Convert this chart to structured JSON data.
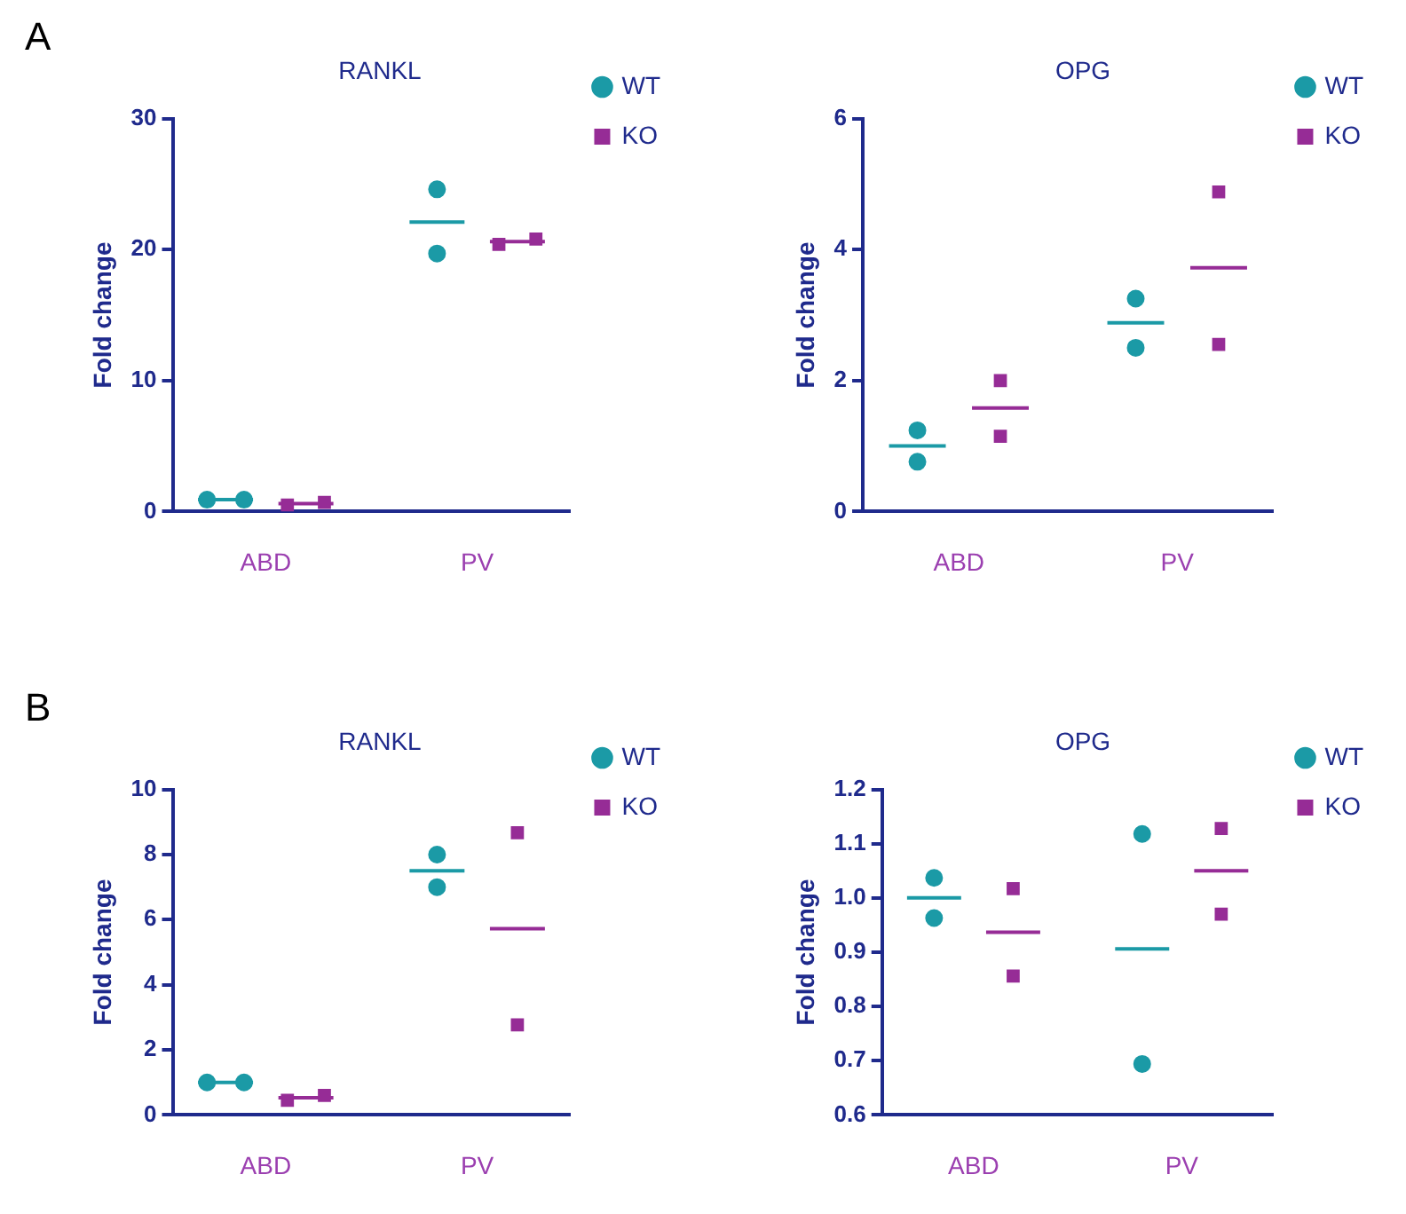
{
  "chart_data": [
    {
      "type": "scatter",
      "title": "RANKL",
      "ylabel": "Fold change",
      "annotations": [
        "A"
      ],
      "categories": [
        "ABD",
        "PV"
      ],
      "ylim": [
        0,
        30
      ],
      "yticks": [
        0,
        10,
        20,
        30
      ],
      "legend": "top right",
      "series": [
        {
          "name": "WT",
          "color": "#1b9aa6",
          "marker": "circle",
          "x": [
            "ABD",
            "ABD",
            "PV",
            "PV"
          ],
          "values": [
            0.9,
            0.9,
            24.6,
            19.7
          ]
        },
        {
          "name": "KO",
          "color": "#962c96",
          "marker": "square",
          "x": [
            "ABD",
            "ABD",
            "PV",
            "PV"
          ],
          "values": [
            0.5,
            0.7,
            20.4,
            20.8
          ]
        },
        {
          "type": "box",
          "color": "#1b9aa6",
          "boxes": [
            {
              "low": 0.9,
              "q1": 0.9,
              "median": 0.9,
              "q3": 0.9,
              "high": 0.9
            },
            {
              "low": 22.1,
              "q1": 22.1,
              "median": 22.1,
              "q3": 22.1,
              "high": 22.1
            }
          ]
        },
        {
          "type": "box",
          "color": "#962c96",
          "boxes": [
            {
              "low": 0.6,
              "q1": 0.6,
              "median": 0.6,
              "q3": 0.6,
              "high": 0.6
            },
            {
              "low": 20.6,
              "q1": 20.6,
              "median": 20.6,
              "q3": 20.6,
              "high": 20.6
            }
          ]
        }
      ]
    },
    {
      "type": "scatter",
      "title": "OPG",
      "ylabel": "Fold change",
      "categories": [
        "ABD",
        "PV"
      ],
      "ylim": [
        0,
        6
      ],
      "yticks": [
        0,
        2,
        4,
        6
      ],
      "legend": "top right",
      "series": [
        {
          "name": "WT",
          "color": "#1b9aa6",
          "marker": "circle",
          "x": [
            "ABD",
            "ABD",
            "PV",
            "PV"
          ],
          "values": [
            1.24,
            0.76,
            3.25,
            2.5
          ]
        },
        {
          "name": "KO",
          "color": "#962c96",
          "marker": "square",
          "x": [
            "ABD",
            "ABD",
            "PV",
            "PV"
          ],
          "values": [
            2.0,
            1.15,
            4.88,
            2.55
          ]
        },
        {
          "type": "box",
          "color": "#1b9aa6",
          "boxes": [
            {
              "low": 1.0,
              "q1": 1.0,
              "median": 1.0,
              "q3": 1.0,
              "high": 1.0
            },
            {
              "low": 2.88,
              "q1": 2.88,
              "median": 2.88,
              "q3": 2.88,
              "high": 2.88
            }
          ]
        },
        {
          "type": "box",
          "color": "#962c96",
          "boxes": [
            {
              "low": 1.58,
              "q1": 1.58,
              "median": 1.58,
              "q3": 1.58,
              "high": 1.58
            },
            {
              "low": 3.72,
              "q1": 3.72,
              "median": 3.72,
              "q3": 3.72,
              "high": 3.72
            }
          ]
        }
      ]
    },
    {
      "type": "scatter",
      "title": "RANKL",
      "ylabel": "Fold change",
      "annotations": [
        "B"
      ],
      "categories": [
        "ABD",
        "PV"
      ],
      "ylim": [
        0,
        10
      ],
      "yticks": [
        0,
        2,
        4,
        6,
        8,
        10
      ],
      "legend": "top right",
      "series": [
        {
          "name": "WT",
          "color": "#1b9aa6",
          "marker": "circle",
          "x": [
            "ABD",
            "ABD",
            "PV",
            "PV"
          ],
          "values": [
            1.0,
            1.0,
            8.0,
            7.0
          ]
        },
        {
          "name": "KO",
          "color": "#962c96",
          "marker": "square",
          "x": [
            "ABD",
            "ABD",
            "PV",
            "PV"
          ],
          "values": [
            0.45,
            0.6,
            8.67,
            2.77
          ]
        },
        {
          "type": "box",
          "color": "#1b9aa6",
          "boxes": [
            {
              "low": 1.0,
              "q1": 1.0,
              "median": 1.0,
              "q3": 1.0,
              "high": 1.0
            },
            {
              "low": 7.5,
              "q1": 7.5,
              "median": 7.5,
              "q3": 7.5,
              "high": 7.5
            }
          ]
        },
        {
          "type": "box",
          "color": "#962c96",
          "boxes": [
            {
              "low": 0.53,
              "q1": 0.53,
              "median": 0.53,
              "q3": 0.53,
              "high": 0.53
            },
            {
              "low": 5.72,
              "q1": 5.72,
              "median": 5.72,
              "q3": 5.72,
              "high": 5.72
            }
          ]
        }
      ]
    },
    {
      "type": "scatter",
      "title": "OPG",
      "ylabel": "Fold change",
      "categories": [
        "ABD",
        "PV"
      ],
      "ylim": [
        0.6,
        1.2
      ],
      "yticks": [
        {
          "value": 0.6,
          "label": "0.6"
        },
        {
          "value": 0.7,
          "label": "0.7"
        },
        {
          "value": 0.8,
          "label": "0.8"
        },
        {
          "value": 0.9,
          "label": "0.9"
        },
        {
          "value": 1.0,
          "label": "1.0"
        },
        {
          "value": 1.1,
          "label": "1.1"
        },
        {
          "value": 1.2,
          "label": "1.2"
        }
      ],
      "legend": "top right",
      "series": [
        {
          "name": "WT",
          "color": "#1b9aa6",
          "marker": "circle",
          "x": [
            "ABD",
            "ABD",
            "PV",
            "PV"
          ],
          "values": [
            1.037,
            0.963,
            1.118,
            0.694
          ]
        },
        {
          "name": "KO",
          "color": "#962c96",
          "marker": "square",
          "x": [
            "ABD",
            "ABD",
            "PV",
            "PV"
          ],
          "values": [
            1.017,
            0.856,
            1.128,
            0.97
          ]
        },
        {
          "type": "box",
          "color": "#1b9aa6",
          "boxes": [
            {
              "low": 1.0,
              "q1": 1.0,
              "median": 1.0,
              "q3": 1.0,
              "high": 1.0
            },
            {
              "low": 0.906,
              "q1": 0.906,
              "median": 0.906,
              "q3": 0.906,
              "high": 0.906
            }
          ]
        },
        {
          "type": "box",
          "color": "#962c96",
          "boxes": [
            {
              "low": 0.937,
              "q1": 0.937,
              "median": 0.937,
              "q3": 0.937,
              "high": 0.937
            },
            {
              "low": 1.05,
              "q1": 1.05,
              "median": 1.05,
              "q3": 1.05,
              "high": 1.05
            }
          ]
        }
      ]
    }
  ]
}
